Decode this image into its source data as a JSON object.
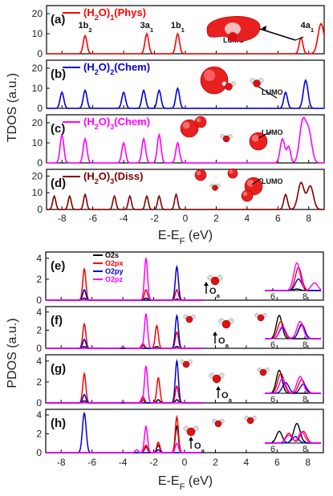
{
  "chart_data": [
    {
      "type": "line",
      "title": "",
      "xlabel": "E-E_F (eV)",
      "ylabel": "TDOS (a.u.)",
      "xlim": [
        -9,
        9
      ],
      "ylim": [
        0,
        24
      ],
      "xticks": [
        -8,
        -6,
        -4,
        -2,
        0,
        2,
        4,
        6,
        8
      ],
      "yticks": [
        0,
        10,
        20
      ],
      "panels": [
        {
          "label": "(a)",
          "legend": "(H2O)1(Phys)",
          "color": "#ff0000",
          "peaks": [
            [
              -6.5,
              9,
              0.12
            ],
            [
              -2.5,
              10,
              0.12
            ],
            [
              -0.5,
              10,
              0.12
            ],
            [
              7.5,
              8,
              0.12
            ],
            [
              8.8,
              15,
              0.2
            ]
          ],
          "orbital_labels": [
            {
              "text": "1b2",
              "x": -6.5,
              "y": 16
            },
            {
              "text": "3a1",
              "x": -2.5,
              "y": 16
            },
            {
              "text": "1b1",
              "x": -0.5,
              "y": 16
            },
            {
              "text": "4a1",
              "x": 7.9,
              "y": 16
            }
          ],
          "lumo_label": "LUMO"
        },
        {
          "label": "(b)",
          "legend": "(H2O)2(Chem)",
          "color": "#0000dd",
          "peaks": [
            [
              -8.0,
              8,
              0.12
            ],
            [
              -6.5,
              9,
              0.12
            ],
            [
              -4.0,
              8,
              0.12
            ],
            [
              -2.7,
              9,
              0.12
            ],
            [
              -1.7,
              9,
              0.12
            ],
            [
              -0.5,
              10,
              0.12
            ],
            [
              6.5,
              8,
              0.12
            ],
            [
              7.8,
              14,
              0.15
            ]
          ],
          "lumo_label": "LUMO"
        },
        {
          "label": "(c)",
          "legend": "(H2O)3(Chem)",
          "color": "#ff00ff",
          "peaks": [
            [
              -8.0,
              14,
              0.12
            ],
            [
              -6.5,
              12,
              0.12
            ],
            [
              -4.0,
              10,
              0.12
            ],
            [
              -2.7,
              12,
              0.12
            ],
            [
              -1.7,
              14,
              0.12
            ],
            [
              -0.5,
              10,
              0.12
            ],
            [
              6.3,
              12,
              0.15
            ],
            [
              6.7,
              8,
              0.12
            ],
            [
              7.6,
              20,
              0.2
            ],
            [
              8.0,
              15,
              0.2
            ]
          ],
          "lumo_label": "LUMO"
        },
        {
          "label": "(d)",
          "legend": "(H2O)3(Diss)",
          "color": "#800000",
          "peaks": [
            [
              -8.5,
              8,
              0.1
            ],
            [
              -7.5,
              8,
              0.1
            ],
            [
              -6.5,
              9,
              0.1
            ],
            [
              -4.6,
              8,
              0.1
            ],
            [
              -3.6,
              8,
              0.1
            ],
            [
              -2.5,
              8,
              0.1
            ],
            [
              -1.7,
              8,
              0.1
            ],
            [
              -0.6,
              9,
              0.1
            ],
            [
              6.5,
              9,
              0.12
            ],
            [
              7.5,
              16,
              0.2
            ],
            [
              8.1,
              14,
              0.2
            ]
          ],
          "lumo_label": "LUMO"
        }
      ]
    },
    {
      "type": "line",
      "title": "",
      "xlabel": "E-E_F (eV)",
      "ylabel": "PDOS (a.u.)",
      "xlim": [
        -9,
        9
      ],
      "ylim": [
        0,
        4
      ],
      "xticks": [
        -8,
        -6,
        -4,
        -2,
        0,
        2,
        4,
        6,
        8
      ],
      "yticks": [
        0,
        2,
        4
      ],
      "series": [
        {
          "name": "O2s",
          "color": "#000000"
        },
        {
          "name": "O2px",
          "color": "#ff0000"
        },
        {
          "name": "O2py",
          "color": "#0000dd"
        },
        {
          "name": "O2pz",
          "color": "#ff00ff"
        }
      ],
      "inset_xticks": [
        6,
        8
      ],
      "panels": [
        {
          "label": "(e)",
          "atom_label": "O_a",
          "peaks": {
            "O2s": [
              [
                -6.5,
                0.2,
                0.1
              ],
              [
                -2.5,
                0.2,
                0.1
              ],
              [
                -0.5,
                0.1,
                0.1
              ]
            ],
            "O2px": [
              [
                -6.5,
                3.0,
                0.1
              ],
              [
                -2.5,
                1.0,
                0.1
              ],
              [
                -0.5,
                1.0,
                0.1
              ]
            ],
            "O2py": [
              [
                -6.5,
                1.0,
                0.1
              ],
              [
                -0.5,
                3.2,
                0.1
              ]
            ],
            "O2pz": [
              [
                -2.5,
                4.0,
                0.1
              ]
            ]
          },
          "inset": {
            "O2s": [
              [
                7.5,
                0.2,
                0.2
              ]
            ],
            "O2px": [
              [
                7.6,
                3.0,
                0.2
              ]
            ],
            "O2py": [
              [
                7.6,
                1.5,
                0.2
              ]
            ],
            "O2pz": [
              [
                7.5,
                3.6,
                0.2
              ],
              [
                8.6,
                1.0,
                0.2
              ]
            ]
          }
        },
        {
          "label": "(f)",
          "atom_label": "O_a",
          "peaks": {
            "O2s": [
              [
                -6.5,
                0.2,
                0.1
              ],
              [
                -2.7,
                0.3,
                0.1
              ],
              [
                -1.8,
                0.2,
                0.1
              ],
              [
                -0.5,
                0.2,
                0.1
              ]
            ],
            "O2px": [
              [
                -6.5,
                2.7,
                0.1
              ],
              [
                -2.7,
                0.5,
                0.1
              ],
              [
                -1.8,
                2.5,
                0.1
              ],
              [
                -0.5,
                1.8,
                0.1
              ]
            ],
            "O2py": [
              [
                -6.5,
                1.0,
                0.1
              ],
              [
                -0.5,
                3.6,
                0.1
              ]
            ],
            "O2pz": [
              [
                -2.5,
                3.8,
                0.1
              ],
              [
                -4.0,
                0.15,
                0.1
              ]
            ]
          },
          "inset": {
            "O2s": [
              [
                6.4,
                3.8,
                0.18
              ]
            ],
            "O2px": [
              [
                6.5,
                2.8,
                0.2
              ],
              [
                7.8,
                2.4,
                0.2
              ]
            ],
            "O2py": [
              [
                6.6,
                1.8,
                0.2
              ],
              [
                7.8,
                2.2,
                0.2
              ]
            ],
            "O2pz": [
              [
                6.6,
                2.0,
                0.2
              ],
              [
                7.7,
                2.8,
                0.2
              ]
            ]
          }
        },
        {
          "label": "(g)",
          "atom_label": "O_a",
          "peaks": {
            "O2s": [
              [
                -6.5,
                0.2,
                0.1
              ],
              [
                -2.7,
                0.3,
                0.1
              ],
              [
                -1.7,
                0.3,
                0.1
              ],
              [
                -0.5,
                0.3,
                0.1
              ]
            ],
            "O2px": [
              [
                -6.5,
                2.8,
                0.1
              ],
              [
                -2.7,
                0.6,
                0.1
              ],
              [
                -1.7,
                2.4,
                0.1
              ],
              [
                -0.5,
                1.6,
                0.1
              ]
            ],
            "O2py": [
              [
                -6.5,
                0.8,
                0.1
              ],
              [
                -0.5,
                4.0,
                0.1
              ]
            ],
            "O2pz": [
              [
                -2.5,
                3.5,
                0.1
              ],
              [
                -4.0,
                0.1,
                0.1
              ]
            ]
          },
          "inset": {
            "O2s": [
              [
                6.4,
                3.0,
                0.18
              ]
            ],
            "O2px": [
              [
                6.5,
                2.6,
                0.2
              ],
              [
                7.8,
                1.8,
                0.2
              ]
            ],
            "O2py": [
              [
                6.8,
                1.4,
                0.2
              ],
              [
                7.9,
                1.2,
                0.2
              ]
            ],
            "O2pz": [
              [
                6.6,
                1.9,
                0.2
              ],
              [
                7.7,
                2.2,
                0.2
              ]
            ]
          }
        },
        {
          "label": "(h)",
          "atom_label": "O_a",
          "peaks": {
            "O2s": [
              [
                -2.5,
                0.6,
                0.1
              ],
              [
                -1.7,
                0.8,
                0.1
              ],
              [
                -0.5,
                2.8,
                0.1
              ]
            ],
            "O2px": [
              [
                -2.5,
                0.8,
                0.1
              ],
              [
                -1.7,
                1.1,
                0.1
              ],
              [
                -0.5,
                3.8,
                0.1
              ]
            ],
            "O2py": [
              [
                -6.5,
                4.2,
                0.12
              ],
              [
                -1.7,
                0.3,
                0.1
              ]
            ],
            "O2pz": [
              [
                -3.1,
                0.3,
                0.1
              ],
              [
                -2.5,
                2.8,
                0.1
              ],
              [
                -0.5,
                1.0,
                0.1
              ]
            ]
          },
          "inset": {
            "O2s": [
              [
                6.4,
                1.8,
                0.18
              ],
              [
                7.5,
                3.0,
                0.2
              ]
            ],
            "O2px": [
              [
                7.0,
                1.5,
                0.2
              ],
              [
                7.9,
                1.8,
                0.2
              ]
            ],
            "O2py": [
              [
                7.4,
                1.0,
                0.2
              ]
            ],
            "O2pz": [
              [
                7.0,
                1.2,
                0.2
              ],
              [
                7.8,
                1.7,
                0.2
              ]
            ]
          }
        }
      ]
    }
  ]
}
